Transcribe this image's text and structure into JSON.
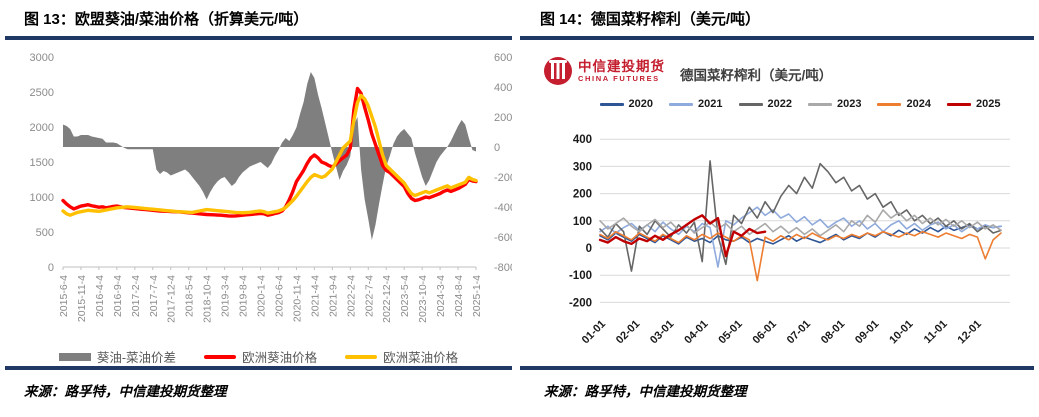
{
  "figure13": {
    "title": "图 13：欧盟葵油/菜油价格（折算美元/吨）",
    "source": "来源：路孚特，中信建投期货整理"
  },
  "figure14": {
    "title": "图 14：德国菜籽榨利（美元/吨）",
    "source": "来源：路孚特，中信建投期货整理",
    "logo_cn": "中信建投期货",
    "logo_en": "CHINA FUTURES",
    "chart_title": "德国菜籽榨利（美元/吨）"
  },
  "colors": {
    "rule_navy": "#1F3864",
    "spread_gray": "#7F7F7F",
    "sunflower_red": "#FF0000",
    "rapeseed_yellow": "#FFC000",
    "axis_gray_text": "#8C8C8C",
    "gridline": "#D9D9D9",
    "logo_red": "#C41E2F"
  },
  "chart_data": [
    {
      "id": "eu-oil-prices",
      "type": "line",
      "title": "欧盟葵油/菜油价格（折算美元/吨）",
      "x_tick_labels": [
        "2015-6-4",
        "2015-11-4",
        "2016-4-4",
        "2016-9-4",
        "2017-2-4",
        "2017-7-4",
        "2017-12-4",
        "2018-5-4",
        "2018-10-4",
        "2019-3-4",
        "2019-8-4",
        "2020-1-4",
        "2020-6-4",
        "2020-11-4",
        "2021-4-4",
        "2021-9-4",
        "2022-2-4",
        "2022-7-4",
        "2022-12-4",
        "2023-5-4",
        "2023-10-4",
        "2024-3-4",
        "2024-8-4",
        "2025-1-4"
      ],
      "months_total": 116,
      "label_month_step": 5,
      "left_axis": {
        "min": 0,
        "max": 3000,
        "ticks": [
          3000,
          2500,
          2000,
          1500,
          1000,
          500,
          0
        ]
      },
      "right_axis": {
        "min": -800,
        "max": 600,
        "ticks": [
          600,
          400,
          200,
          0,
          -200,
          -400,
          -600,
          -800
        ]
      },
      "grid": false,
      "legend_position": "bottom",
      "series": [
        {
          "name": "葵油-菜油价差",
          "type": "area",
          "axis": "right",
          "color": "#7F7F7F",
          "values": [
            150,
            140,
            120,
            70,
            70,
            80,
            80,
            80,
            70,
            65,
            60,
            55,
            30,
            30,
            30,
            25,
            10,
            -5,
            -15,
            -15,
            -15,
            -15,
            -15,
            -15,
            -15,
            -15,
            -150,
            -180,
            -160,
            -170,
            -190,
            -180,
            -170,
            -160,
            -150,
            -170,
            -200,
            -230,
            -260,
            -300,
            -350,
            -300,
            -260,
            -230,
            -210,
            -200,
            -230,
            -260,
            -240,
            -200,
            -170,
            -150,
            -130,
            -120,
            -110,
            -100,
            -120,
            -140,
            -110,
            -60,
            -20,
            30,
            60,
            40,
            80,
            130,
            220,
            300,
            420,
            500,
            460,
            350,
            260,
            160,
            60,
            -40,
            -130,
            -220,
            -160,
            -120,
            -60,
            150,
            200,
            -150,
            -350,
            -480,
            -620,
            -520,
            -380,
            -250,
            -130,
            -60,
            20,
            70,
            100,
            120,
            90,
            60,
            -40,
            -120,
            -200,
            -260,
            -220,
            -160,
            -100,
            -60,
            -30,
            0,
            40,
            90,
            140,
            180,
            150,
            60,
            -20,
            -30
          ]
        },
        {
          "name": "欧洲葵油价格",
          "type": "line",
          "axis": "left",
          "color": "#FF0000",
          "values": [
            950,
            900,
            860,
            830,
            850,
            870,
            880,
            890,
            875,
            865,
            855,
            860,
            845,
            855,
            865,
            870,
            860,
            850,
            845,
            840,
            835,
            830,
            825,
            820,
            815,
            810,
            805,
            800,
            798,
            795,
            792,
            790,
            788,
            785,
            780,
            775,
            770,
            765,
            760,
            755,
            750,
            748,
            745,
            742,
            740,
            735,
            730,
            728,
            730,
            735,
            740,
            745,
            750,
            755,
            760,
            765,
            760,
            740,
            750,
            765,
            775,
            800,
            860,
            960,
            1080,
            1220,
            1300,
            1380,
            1480,
            1560,
            1600,
            1560,
            1500,
            1480,
            1450,
            1430,
            1470,
            1520,
            1560,
            1600,
            1700,
            2250,
            2550,
            2480,
            2280,
            2100,
            1900,
            1750,
            1600,
            1450,
            1380,
            1350,
            1300,
            1250,
            1200,
            1150,
            1050,
            980,
            950,
            960,
            980,
            1000,
            990,
            1010,
            1030,
            1050,
            1080,
            1100,
            1080,
            1100,
            1120,
            1150,
            1180,
            1250,
            1230,
            1220
          ]
        },
        {
          "name": "欧洲菜油价格",
          "type": "line",
          "axis": "left",
          "color": "#FFC000",
          "values": [
            800,
            760,
            740,
            760,
            780,
            790,
            800,
            810,
            805,
            800,
            795,
            805,
            815,
            825,
            835,
            845,
            850,
            855,
            860,
            855,
            850,
            845,
            840,
            835,
            830,
            825,
            820,
            815,
            810,
            805,
            800,
            795,
            790,
            788,
            785,
            782,
            780,
            790,
            800,
            810,
            820,
            815,
            810,
            805,
            800,
            795,
            790,
            785,
            780,
            778,
            775,
            778,
            782,
            788,
            795,
            800,
            790,
            770,
            780,
            790,
            800,
            820,
            850,
            900,
            950,
            1010,
            1080,
            1150,
            1220,
            1280,
            1320,
            1300,
            1280,
            1300,
            1350,
            1400,
            1500,
            1600,
            1700,
            1750,
            1800,
            2100,
            2350,
            2450,
            2400,
            2300,
            2150,
            2000,
            1800,
            1600,
            1450,
            1400,
            1350,
            1300,
            1250,
            1200,
            1120,
            1050,
            1020,
            1040,
            1060,
            1080,
            1060,
            1080,
            1100,
            1120,
            1140,
            1160,
            1130,
            1150,
            1170,
            1190,
            1210,
            1280,
            1250,
            1235
          ]
        }
      ]
    },
    {
      "id": "german-rapeseed-crush-margin",
      "type": "line",
      "title": "德国菜籽榨利（美元/吨）",
      "x_tick_labels": [
        "01-01",
        "02-01",
        "03-01",
        "04-01",
        "05-01",
        "06-01",
        "07-01",
        "08-01",
        "09-01",
        "10-01",
        "11-01",
        "12-01"
      ],
      "y_axis": {
        "min": -200,
        "max": 400,
        "ticks": [
          400,
          300,
          200,
          100,
          0,
          -100,
          -200
        ]
      },
      "grid": true,
      "legend_position": "top",
      "x_unit": "week-of-year",
      "series": [
        {
          "name": "2020",
          "color": "#2E5596",
          "width": 1.6,
          "values": [
            45,
            30,
            55,
            40,
            25,
            50,
            35,
            20,
            45,
            30,
            15,
            40,
            25,
            35,
            20,
            45,
            30,
            25,
            40,
            20,
            35,
            25,
            15,
            30,
            45,
            25,
            40,
            30,
            20,
            35,
            50,
            30,
            45,
            35,
            55,
            40,
            60,
            45,
            65,
            50,
            70,
            55,
            75,
            60,
            80,
            65,
            75,
            85,
            70,
            80,
            75,
            80
          ]
        },
        {
          "name": "2021",
          "color": "#8FAADC",
          "width": 1.6,
          "values": [
            60,
            80,
            55,
            75,
            90,
            65,
            85,
            60,
            95,
            70,
            50,
            80,
            60,
            90,
            75,
            -70,
            100,
            85,
            110,
            130,
            150,
            120,
            140,
            110,
            125,
            95,
            115,
            85,
            105,
            75,
            95,
            110,
            80,
            100,
            70,
            90,
            60,
            85,
            100,
            70,
            90,
            65,
            85,
            95,
            70,
            85,
            60,
            80,
            70,
            85,
            75,
            80
          ]
        },
        {
          "name": "2022",
          "color": "#666666",
          "width": 1.6,
          "values": [
            70,
            40,
            90,
            60,
            -85,
            80,
            50,
            100,
            70,
            40,
            85,
            55,
            95,
            -50,
            320,
            45,
            -60,
            120,
            90,
            150,
            110,
            170,
            130,
            190,
            230,
            200,
            260,
            220,
            310,
            280,
            240,
            260,
            210,
            230,
            180,
            200,
            150,
            170,
            120,
            140,
            100,
            120,
            90,
            110,
            80,
            100,
            70,
            90,
            60,
            80,
            55,
            65
          ]
        },
        {
          "name": "2023",
          "color": "#A9A9A9",
          "width": 1.6,
          "values": [
            100,
            70,
            90,
            110,
            80,
            60,
            85,
            105,
            75,
            95,
            65,
            85,
            55,
            75,
            95,
            70,
            90,
            60,
            80,
            50,
            70,
            90,
            60,
            80,
            55,
            75,
            50,
            70,
            45,
            65,
            85,
            60,
            100,
            80,
            120,
            95,
            140,
            110,
            130,
            100,
            120,
            90,
            110,
            85,
            105,
            80,
            100,
            75,
            95,
            70,
            85,
            65
          ]
        },
        {
          "name": "2024",
          "color": "#ED7D31",
          "width": 1.6,
          "values": [
            50,
            35,
            60,
            45,
            30,
            55,
            40,
            25,
            50,
            35,
            20,
            45,
            30,
            50,
            35,
            55,
            40,
            25,
            45,
            30,
            -120,
            40,
            25,
            45,
            30,
            50,
            35,
            55,
            40,
            30,
            45,
            35,
            50,
            40,
            55,
            45,
            60,
            50,
            40,
            55,
            45,
            60,
            50,
            40,
            55,
            45,
            35,
            50,
            40,
            -40,
            30,
            55
          ]
        },
        {
          "name": "2025",
          "color": "#C00000",
          "width": 2.4,
          "values": [
            30,
            20,
            40,
            25,
            15,
            35,
            25,
            45,
            30,
            50,
            65,
            85,
            105,
            120,
            90,
            110,
            -30,
            60,
            45,
            70,
            55,
            60
          ]
        }
      ]
    }
  ]
}
